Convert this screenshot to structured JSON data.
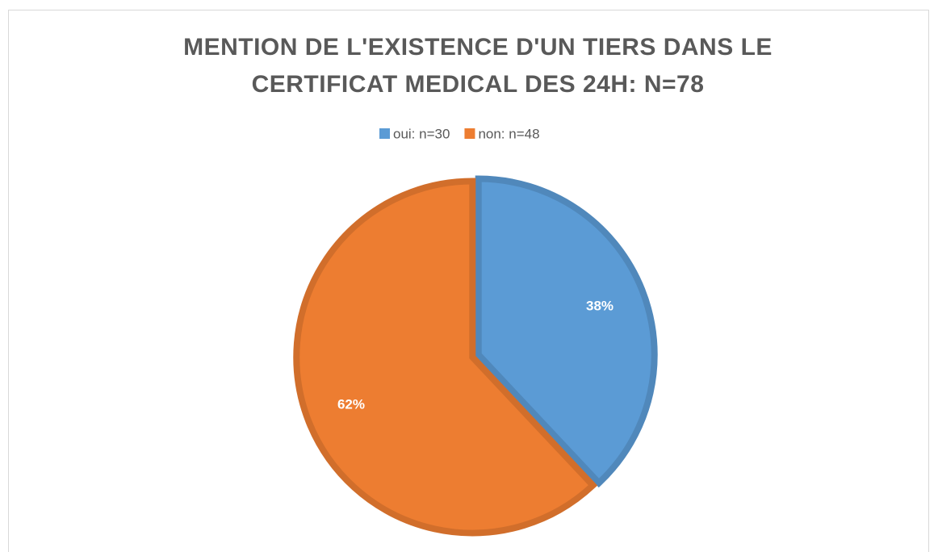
{
  "chart_data": {
    "type": "pie",
    "title": "MENTION DE L'EXISTENCE D'UN TIERS DANS LE CERTIFICAT MEDICAL DES 24H: N=78",
    "categories": [
      "oui: n=30",
      "non: n=48"
    ],
    "values": [
      38,
      62
    ],
    "value_labels": [
      "38%",
      "62%"
    ],
    "colors": [
      "#5b9bd5",
      "#ed7d31"
    ],
    "legend": "top"
  }
}
